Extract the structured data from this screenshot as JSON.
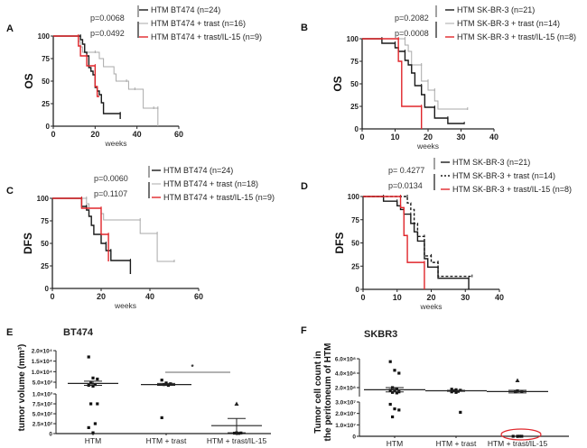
{
  "colors": {
    "black": "#1a1a1a",
    "gray": "#aaaaaa",
    "red": "#e0262b",
    "axis": "#222222"
  },
  "chart_data": [
    {
      "panel": "A",
      "type": "line",
      "subtype": "kaplan-meier",
      "ylabel": "OS",
      "xlabel": "weeks",
      "xlim": [
        0,
        60
      ],
      "ylim": [
        0,
        100
      ],
      "xticks": [
        "0",
        "20",
        "40",
        "60"
      ],
      "yticks": [
        "0",
        "25",
        "50",
        "75",
        "100"
      ],
      "pvalues": [
        "p=0.0068",
        "p=0.0492"
      ],
      "series": [
        {
          "name": "HTM BT474 (n=24)",
          "color": "black",
          "steps": [
            [
              0,
              100
            ],
            [
              13,
              100
            ],
            [
              13,
              96
            ],
            [
              14,
              91
            ],
            [
              15,
              87
            ],
            [
              15,
              82
            ],
            [
              16,
              78
            ],
            [
              17,
              70
            ],
            [
              17,
              65
            ],
            [
              18,
              61
            ],
            [
              19,
              57
            ],
            [
              20,
              52
            ],
            [
              20,
              43
            ],
            [
              21,
              39
            ],
            [
              22,
              35
            ],
            [
              23,
              26
            ],
            [
              24,
              22
            ],
            [
              24,
              14
            ],
            [
              32,
              14
            ],
            [
              32,
              8
            ]
          ]
        },
        {
          "name": "HTM BT474 + trast  (n=16)",
          "color": "gray",
          "steps": [
            [
              0,
              100
            ],
            [
              12,
              100
            ],
            [
              12,
              94
            ],
            [
              13,
              88
            ],
            [
              14,
              82
            ],
            [
              20,
              82
            ],
            [
              22,
              75
            ],
            [
              24,
              66
            ],
            [
              29,
              58
            ],
            [
              30,
              50
            ],
            [
              35,
              50
            ],
            [
              36,
              41
            ],
            [
              39,
              41
            ],
            [
              43,
              20
            ],
            [
              48,
              20
            ],
            [
              50,
              20
            ],
            [
              50,
              0
            ]
          ]
        },
        {
          "name": "HTM BT474 + trast/IL-15 (n=9)",
          "color": "red",
          "steps": [
            [
              0,
              100
            ],
            [
              12,
              100
            ],
            [
              12,
              89
            ],
            [
              13,
              78
            ],
            [
              16,
              78
            ],
            [
              16,
              67
            ],
            [
              20,
              67
            ],
            [
              20,
              44
            ],
            [
              21,
              33
            ],
            [
              22,
              33
            ]
          ]
        }
      ]
    },
    {
      "panel": "B",
      "type": "line",
      "subtype": "kaplan-meier",
      "ylabel": "OS",
      "xlabel": "weeks",
      "xlim": [
        0,
        40
      ],
      "ylim": [
        0,
        100
      ],
      "xticks": [
        "0",
        "10",
        "20",
        "30",
        "40"
      ],
      "yticks": [
        "0",
        "25",
        "50",
        "75",
        "100"
      ],
      "pvalues": [
        "p=0.2082",
        "p=0.0008"
      ],
      "series": [
        {
          "name": "HTM SK-BR-3 (n=21)",
          "color": "black",
          "steps": [
            [
              0,
              100
            ],
            [
              6,
              100
            ],
            [
              6,
              95
            ],
            [
              10,
              95
            ],
            [
              10,
              90
            ],
            [
              11,
              90
            ],
            [
              11,
              86
            ],
            [
              13,
              86
            ],
            [
              13,
              76
            ],
            [
              14,
              76
            ],
            [
              14,
              71
            ],
            [
              15,
              71
            ],
            [
              15,
              62
            ],
            [
              16,
              62
            ],
            [
              16,
              48
            ],
            [
              18,
              48
            ],
            [
              18,
              38
            ],
            [
              19,
              38
            ],
            [
              19,
              24
            ],
            [
              22,
              24
            ],
            [
              22,
              12
            ],
            [
              26,
              12
            ],
            [
              26,
              6
            ],
            [
              31,
              6
            ]
          ]
        },
        {
          "name": "HTM SK-BR-3 + trast (n=14)",
          "color": "gray",
          "steps": [
            [
              0,
              100
            ],
            [
              13,
              100
            ],
            [
              13,
              93
            ],
            [
              14,
              93
            ],
            [
              14,
              86
            ],
            [
              15,
              86
            ],
            [
              15,
              71
            ],
            [
              18,
              71
            ],
            [
              18,
              53
            ],
            [
              20,
              53
            ],
            [
              20,
              43
            ],
            [
              22,
              43
            ],
            [
              22,
              31
            ],
            [
              23,
              31
            ],
            [
              23,
              22
            ],
            [
              32,
              22
            ]
          ]
        },
        {
          "name": "HTM SK-BR-3 + trast/IL-15 (n=8)",
          "color": "red",
          "steps": [
            [
              0,
              100
            ],
            [
              11,
              100
            ],
            [
              11,
              75
            ],
            [
              12,
              75
            ],
            [
              12,
              25
            ],
            [
              18,
              25
            ],
            [
              18,
              0
            ]
          ]
        }
      ]
    },
    {
      "panel": "C",
      "type": "line",
      "subtype": "kaplan-meier",
      "ylabel": "DFS",
      "xlabel": "weeks",
      "xlim": [
        0,
        60
      ],
      "ylim": [
        0,
        100
      ],
      "xticks": [
        "0",
        "20",
        "40",
        "60"
      ],
      "yticks": [
        "0",
        "25",
        "50",
        "75",
        "100"
      ],
      "pvalues": [
        "p=0.0060",
        "p=0.1107"
      ],
      "series": [
        {
          "name": "HTM BT474 (n=24)",
          "color": "black",
          "steps": [
            [
              0,
              100
            ],
            [
              12,
              100
            ],
            [
              12,
              91
            ],
            [
              14,
              91
            ],
            [
              14,
              87
            ],
            [
              15,
              87
            ],
            [
              15,
              80
            ],
            [
              16,
              80
            ],
            [
              16,
              70
            ],
            [
              17,
              70
            ],
            [
              17,
              60
            ],
            [
              20,
              60
            ],
            [
              20,
              50
            ],
            [
              22,
              50
            ],
            [
              22,
              42
            ],
            [
              24,
              42
            ],
            [
              24,
              31
            ],
            [
              32,
              31
            ],
            [
              32,
              16
            ]
          ]
        },
        {
          "name": "HTM BT474 + trast (n=18)",
          "color": "gray",
          "steps": [
            [
              0,
              100
            ],
            [
              14,
              100
            ],
            [
              14,
              94
            ],
            [
              15,
              94
            ],
            [
              15,
              89
            ],
            [
              20,
              89
            ],
            [
              20,
              83
            ],
            [
              21,
              83
            ],
            [
              21,
              76
            ],
            [
              36,
              76
            ],
            [
              36,
              61
            ],
            [
              43,
              61
            ],
            [
              43,
              30
            ],
            [
              50,
              30
            ]
          ]
        },
        {
          "name": "HTM BT474 + trast/IL-15 (n=9)",
          "color": "red",
          "steps": [
            [
              0,
              100
            ],
            [
              12,
              100
            ],
            [
              12,
              89
            ],
            [
              20,
              89
            ],
            [
              20,
              60
            ],
            [
              23,
              60
            ],
            [
              23,
              30
            ]
          ]
        }
      ]
    },
    {
      "panel": "D",
      "type": "line",
      "subtype": "kaplan-meier",
      "ylabel": "DFS",
      "xlabel": "weeks",
      "xlim": [
        0,
        40
      ],
      "ylim": [
        0,
        100
      ],
      "xticks": [
        "0",
        "10",
        "20",
        "30",
        "40"
      ],
      "yticks": [
        "0",
        "25",
        "50",
        "75",
        "100"
      ],
      "pvalues": [
        "p= 0.4277",
        "p=0.0134"
      ],
      "series": [
        {
          "name": "HTM SK-BR-3 (n=21)",
          "color": "black",
          "steps": [
            [
              0,
              100
            ],
            [
              6,
              100
            ],
            [
              6,
              95
            ],
            [
              10,
              95
            ],
            [
              10,
              90
            ],
            [
              11,
              90
            ],
            [
              11,
              86
            ],
            [
              12,
              86
            ],
            [
              12,
              81
            ],
            [
              14,
              81
            ],
            [
              14,
              71
            ],
            [
              15,
              71
            ],
            [
              15,
              62
            ],
            [
              16,
              62
            ],
            [
              16,
              52
            ],
            [
              18,
              52
            ],
            [
              18,
              33
            ],
            [
              19,
              33
            ],
            [
              19,
              24
            ],
            [
              22,
              24
            ],
            [
              22,
              12
            ],
            [
              31,
              12
            ],
            [
              31,
              0
            ]
          ]
        },
        {
          "name": "HTM SK-BR-3 + trast (n=14)",
          "color": "black-dashed",
          "steps": [
            [
              0,
              100
            ],
            [
              13,
              100
            ],
            [
              13,
              93
            ],
            [
              14,
              93
            ],
            [
              14,
              86
            ],
            [
              15,
              86
            ],
            [
              15,
              71
            ],
            [
              16,
              71
            ],
            [
              16,
              57
            ],
            [
              18,
              57
            ],
            [
              18,
              36
            ],
            [
              20,
              36
            ],
            [
              20,
              29
            ],
            [
              22,
              29
            ],
            [
              22,
              14
            ],
            [
              32,
              14
            ]
          ]
        },
        {
          "name": "HTM SK-BR-3 + trast/IL-15 (n=8)",
          "color": "red",
          "steps": [
            [
              0,
              100
            ],
            [
              11,
              100
            ],
            [
              11,
              88
            ],
            [
              12,
              88
            ],
            [
              12,
              58
            ],
            [
              13,
              58
            ],
            [
              13,
              29
            ],
            [
              18,
              29
            ],
            [
              18,
              0
            ]
          ]
        }
      ]
    },
    {
      "panel": "E",
      "type": "scatter",
      "title": "BT474",
      "ylabel": "tumor volume (mm³)",
      "categories": [
        "HTM",
        "HTM + trast",
        "HTM + trast/IL-15"
      ],
      "yticks_upper": [
        "5.0×10³",
        "1.0×10⁴",
        "1.5×10⁴",
        "2.0×10⁴"
      ],
      "yticks_lower": [
        "0",
        "2.5×10²",
        "5.0×10²",
        "7.5×10²",
        "1.0×10³"
      ],
      "significance_marker": "*",
      "groups": [
        {
          "name": "HTM",
          "points": [
            17000,
            7000,
            6500,
            4500,
            3500,
            3000,
            2500,
            750,
            750,
            250,
            150,
            20
          ],
          "mean": 4200,
          "sem_low": 3000,
          "sem_high": 5500
        },
        {
          "name": "HTM + trast",
          "points": [
            6000,
            4500,
            4000,
            3500,
            3000,
            400
          ],
          "mean": 3500,
          "sem_low": 3000,
          "sem_high": 4200
        },
        {
          "name": "HTM + trast/IL-15",
          "points": [
            750,
            20,
            15,
            10,
            5
          ],
          "mean": 200,
          "sem_low": 20,
          "sem_high": 380
        }
      ]
    },
    {
      "panel": "F",
      "type": "scatter",
      "title": "SKBR3",
      "ylabel": "Tumor cell count in the peritoneum of HTM",
      "categories": [
        "HTM",
        "HTM + trast",
        "HTM + trast/IL-15"
      ],
      "yticks_upper": [
        "2.0×10⁸",
        "4.0×10⁸",
        "6.0×10⁸"
      ],
      "yticks_lower": [
        "0",
        "1.0×10⁷",
        "2.0×10⁷",
        "3.0×10⁷"
      ],
      "highlight": "red ellipse around near-zero HTM + trast/IL-15 points",
      "groups": [
        {
          "name": "HTM",
          "points": [
            560000000,
            440000000,
            400000000,
            200000000,
            170000000,
            150000000,
            140000000,
            120000000,
            110000000,
            100000000,
            28000000,
            24000000,
            23000000,
            17000000
          ],
          "mean": 160000000,
          "sem_low": 120000000,
          "sem_high": 200000000
        },
        {
          "name": "HTM + trast",
          "points": [
            170000000,
            160000000,
            150000000,
            140000000,
            130000000,
            120000000,
            110000000,
            21000000
          ],
          "mean": 140000000,
          "sem_low": 130000000,
          "sem_high": 150000000
        },
        {
          "name": "HTM + trast/IL-15",
          "points": [
            300000000,
            140000000,
            130000000,
            120000000,
            0,
            0,
            0,
            0
          ],
          "mean": 125000000,
          "sem_low": 100000000,
          "sem_high": 150000000
        }
      ]
    }
  ],
  "labels": {
    "A": "A",
    "B": "B",
    "C": "C",
    "D": "D",
    "E": "E",
    "F": "F",
    "weeks": "weeks",
    "os": "OS",
    "dfs": "DFS",
    "e_title": "BT474",
    "f_title": "SKBR3",
    "e_ylabel": "tumor volume (mm³)",
    "f_ylabel1": "Tumor cell count in",
    "f_ylabel2": "the peritoneum of HTM",
    "cat1": "HTM",
    "cat2": "HTM + trast",
    "cat3": "HTM + trast/IL-15",
    "star": "*"
  }
}
